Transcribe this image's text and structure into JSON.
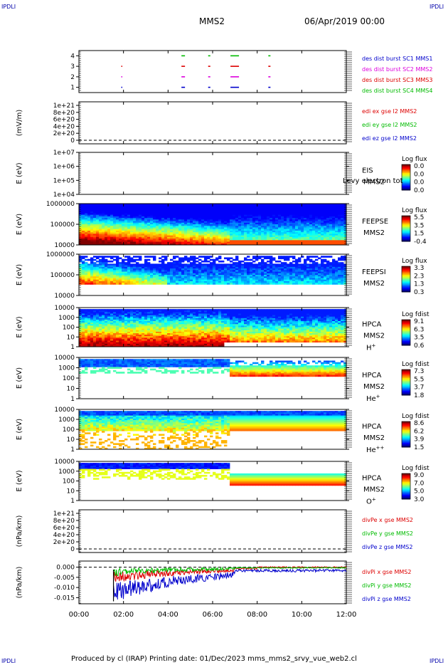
{
  "corners": {
    "top_left": "IPDLI",
    "top_right": "IPDLI",
    "bottom_left": "IPDLI",
    "bottom_right": "IPDLI"
  },
  "header": {
    "title": "MMS2",
    "date": "06/Apr/2019 00:00"
  },
  "footer": {
    "text": "Produced by cl (IRAP)   Printing date: 01/Dec/2023   mms_mms2_srvy_vue_web2.cl"
  },
  "colors": {
    "blue": "#0000cc",
    "magenta": "#dd00dd",
    "red": "#dd0000",
    "green": "#00bb00",
    "black": "#000000"
  },
  "chart_data": [
    {
      "type": "scatter",
      "panel": "burst",
      "ylim": [
        0.5,
        4.5
      ],
      "y_ticks": [
        "1",
        "2",
        "3",
        "4"
      ],
      "xlim": [
        0,
        12
      ],
      "series": [
        {
          "name": "des dist burst SC1 MMS1",
          "color": "#0000cc",
          "y": 1,
          "x": [
            1.9,
            4.6,
            5.8,
            6.8,
            8.5
          ]
        },
        {
          "name": "des dist burst SC2 MMS2",
          "color": "#dd00dd",
          "y": 2,
          "x": [
            1.9,
            4.6,
            5.8,
            6.8,
            8.5
          ]
        },
        {
          "name": "des dist burst SC3 MMS3",
          "color": "#dd0000",
          "y": 3,
          "x": [
            1.9,
            4.6,
            5.8,
            6.8,
            8.5
          ]
        },
        {
          "name": "des dist burst SC4 MMS4",
          "color": "#00bb00",
          "y": 4,
          "x": [
            4.6,
            5.8,
            6.8,
            8.5
          ]
        }
      ]
    },
    {
      "type": "line",
      "panel": "edi",
      "ylabel": "(mV/m)",
      "y_ticks": [
        "1e+21",
        "8e+20",
        "6e+20",
        "4e+20",
        "2e+20",
        "0"
      ],
      "xlim": [
        0,
        12
      ],
      "series": [
        {
          "name": "edi ex gse l2 MMS2",
          "color": "#dd0000"
        },
        {
          "name": "edi ey gse l2 MMS2",
          "color": "#00bb00"
        },
        {
          "name": "edi ez gse l2 MMS2",
          "color": "#0000cc"
        }
      ]
    },
    {
      "type": "heatmap",
      "panel": "eis",
      "ylabel": "E (eV)",
      "y_ticks": [
        "1e+07",
        "1e+06",
        "1e+05",
        "1e+04"
      ],
      "side_label": [
        "EIS",
        "MMS2"
      ],
      "overlay_text": "Levy electron tot",
      "colorbar": {
        "title": "Log flux",
        "ticks": [
          "0.0",
          "0.0",
          "0.0",
          "0.0"
        ]
      }
    },
    {
      "type": "heatmap",
      "panel": "feeps_e",
      "ylabel": "E (eV)",
      "y_ticks": [
        "1000000",
        "100000",
        "10000"
      ],
      "side_label": [
        "FEEPSE",
        "MMS2"
      ],
      "colorbar": {
        "title": "Log flux",
        "ticks": [
          "5.5",
          "3.5",
          "1.5",
          "-0.4"
        ]
      }
    },
    {
      "type": "heatmap",
      "panel": "feeps_i",
      "ylabel": "E (eV)",
      "y_ticks": [
        "1000000",
        "100000",
        "10000"
      ],
      "side_label": [
        "FEEPSI",
        "MMS2"
      ],
      "colorbar": {
        "title": "Log flux",
        "ticks": [
          "3.3",
          "2.3",
          "1.3",
          "0.3"
        ]
      }
    },
    {
      "type": "heatmap",
      "panel": "hpca_h",
      "ylabel": "E (eV)",
      "y_ticks": [
        "10000",
        "1000",
        "100",
        "10",
        "1"
      ],
      "side_label": [
        "HPCA",
        "MMS2"
      ],
      "species": "H",
      "species_sup": "+",
      "colorbar": {
        "title": "Log fdist",
        "ticks": [
          "9.1",
          "6.3",
          "3.5",
          "0.6"
        ]
      }
    },
    {
      "type": "heatmap",
      "panel": "hpca_he",
      "ylabel": "E (eV)",
      "y_ticks": [
        "10000",
        "1000",
        "100",
        "10",
        "1"
      ],
      "side_label": [
        "HPCA",
        "MMS2"
      ],
      "species": "He",
      "species_sup": "+",
      "colorbar": {
        "title": "Log fdist",
        "ticks": [
          "7.3",
          "5.5",
          "3.7",
          "1.8"
        ]
      }
    },
    {
      "type": "heatmap",
      "panel": "hpca_hepp",
      "ylabel": "E (eV)",
      "y_ticks": [
        "10000",
        "1000",
        "100",
        "10",
        "1"
      ],
      "side_label": [
        "HPCA",
        "MMS2"
      ],
      "species": "He",
      "species_sup": "++",
      "colorbar": {
        "title": "Log fdist",
        "ticks": [
          "8.6",
          "6.2",
          "3.9",
          "1.5"
        ]
      }
    },
    {
      "type": "heatmap",
      "panel": "hpca_o",
      "ylabel": "E (eV)",
      "y_ticks": [
        "10000",
        "1000",
        "100",
        "10",
        "1"
      ],
      "side_label": [
        "HPCA",
        "MMS2"
      ],
      "species": "O",
      "species_sup": "+",
      "colorbar": {
        "title": "Log fdist",
        "ticks": [
          "9.0",
          "7.0",
          "5.0",
          "3.0"
        ]
      }
    },
    {
      "type": "line",
      "panel": "divpe",
      "ylabel": "(nPa/km)",
      "y_ticks": [
        "1e+21",
        "8e+20",
        "6e+20",
        "4e+20",
        "2e+20",
        "0"
      ],
      "series": [
        {
          "name": "divPe x gse MMS2",
          "color": "#dd0000"
        },
        {
          "name": "divPe y gse MMS2",
          "color": "#00bb00"
        },
        {
          "name": "divPe z gse MMS2",
          "color": "#0000cc"
        }
      ]
    },
    {
      "type": "line",
      "panel": "divpi",
      "ylabel": "(nPa/km)",
      "ylim": [
        -0.018,
        0.003
      ],
      "y_ticks": [
        "0.000",
        "-0.005",
        "-0.010",
        "-0.015"
      ],
      "series": [
        {
          "name": "divPi x gse MMS2",
          "color": "#dd0000"
        },
        {
          "name": "divPi y gse MMS2",
          "color": "#00bb00"
        },
        {
          "name": "divPi z gse MMS2",
          "color": "#0000cc"
        }
      ]
    }
  ],
  "x_axis": {
    "ticks": [
      "00:00",
      "02:00",
      "04:00",
      "06:00",
      "08:00",
      "10:00",
      "12:00"
    ],
    "xlim": [
      0,
      12
    ]
  }
}
